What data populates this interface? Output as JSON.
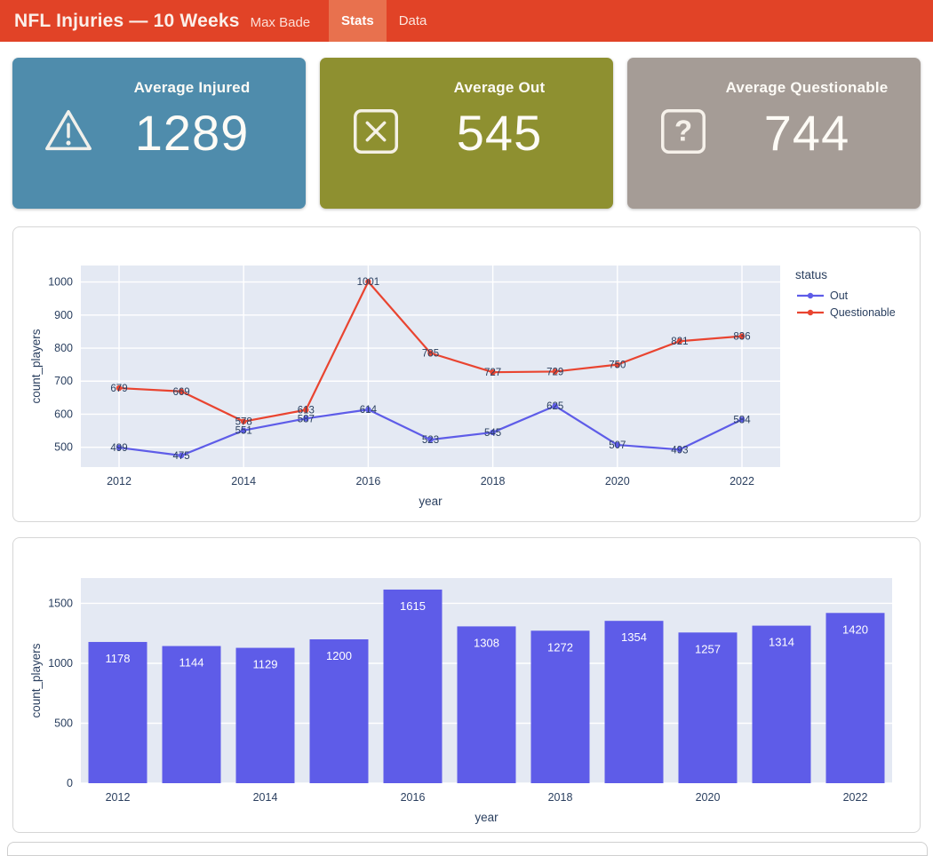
{
  "header": {
    "title": "NFL Injuries — 10 Weeks",
    "subtitle": "Max Bade",
    "bg": "#E14327",
    "active_tab_bg": "#E8714E",
    "tabs": [
      {
        "label": "Stats",
        "active": true
      },
      {
        "label": "Data",
        "active": false
      }
    ]
  },
  "cards": [
    {
      "title": "Average Injured",
      "value": "1289",
      "icon": "warning-triangle-icon",
      "bg": "#4F8CAC"
    },
    {
      "title": "Average Out",
      "value": "545",
      "icon": "x-square-icon",
      "bg": "#8E9030"
    },
    {
      "title": "Average Questionable",
      "value": "744",
      "icon": "question-square-icon",
      "bg": "#A59C96"
    }
  ],
  "chart_data": [
    {
      "type": "line",
      "x": [
        2012,
        2013,
        2014,
        2015,
        2016,
        2017,
        2018,
        2019,
        2020,
        2021,
        2022
      ],
      "series": [
        {
          "name": "Out",
          "color": "#5E5CE8",
          "values": [
            499,
            475,
            551,
            587,
            614,
            523,
            545,
            625,
            507,
            493,
            584
          ]
        },
        {
          "name": "Questionable",
          "color": "#E94430",
          "values": [
            679,
            669,
            578,
            613,
            1001,
            785,
            727,
            729,
            750,
            821,
            836
          ]
        }
      ],
      "xlabel": "year",
      "ylabel": "count_players",
      "xticks": [
        2012,
        2014,
        2016,
        2018,
        2020,
        2022
      ],
      "yticks": [
        500,
        600,
        700,
        800,
        900,
        1000
      ],
      "ylim": [
        440,
        1050
      ],
      "legend_title": "status",
      "legend_position": "right",
      "grid": true,
      "plot_bg": "#E4E9F3",
      "text_color": "#2A3F5F",
      "point_labels": true
    },
    {
      "type": "bar",
      "x": [
        2012,
        2013,
        2014,
        2015,
        2016,
        2017,
        2018,
        2019,
        2020,
        2021,
        2022
      ],
      "values": [
        1178,
        1144,
        1129,
        1200,
        1615,
        1308,
        1272,
        1354,
        1257,
        1314,
        1420
      ],
      "bar_color": "#5E5CE8",
      "xlabel": "year",
      "ylabel": "count_players",
      "xticks": [
        2012,
        2014,
        2016,
        2018,
        2020,
        2022
      ],
      "yticks": [
        0,
        500,
        1000,
        1500
      ],
      "ylim": [
        0,
        1711
      ],
      "grid": true,
      "plot_bg": "#E4E9F3",
      "text_color": "#2A3F5F",
      "bar_labels": true,
      "bar_label_color": "#FFFFFF"
    }
  ]
}
